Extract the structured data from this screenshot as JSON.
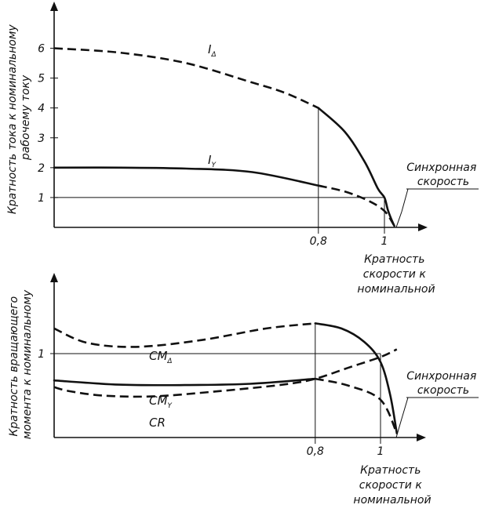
{
  "chart_data": [
    {
      "type": "line",
      "ylabel": [
        "Кратность тока к номинальному",
        "рабочему току"
      ],
      "xlabel": [
        "Кратность",
        "скорости к",
        "номинальной"
      ],
      "annotation": [
        "Синхронная",
        "скорость"
      ],
      "x_ticks": [
        {
          "value": 0.8,
          "label": "0,8"
        },
        {
          "value": 1,
          "label": "1"
        }
      ],
      "y_ticks": [
        {
          "value": 1,
          "label": "1"
        },
        {
          "value": 2,
          "label": "2"
        },
        {
          "value": 3,
          "label": "3"
        },
        {
          "value": 4,
          "label": "4"
        },
        {
          "value": 5,
          "label": "5"
        },
        {
          "value": 6,
          "label": "6"
        }
      ],
      "xlim": [
        0,
        1.06
      ],
      "ylim": [
        0,
        7.3
      ],
      "ref_lines": {
        "hline": 1,
        "vlines": [
          0.8,
          1.0
        ]
      },
      "series": [
        {
          "name": "I",
          "subscript": "Δ",
          "segments": [
            {
              "style": "dashed",
              "points": [
                [
                  0,
                  6
                ],
                [
                  0.2,
                  5.85
                ],
                [
                  0.4,
                  5.5
                ],
                [
                  0.6,
                  4.85
                ],
                [
                  0.7,
                  4.5
                ],
                [
                  0.8,
                  4.0
                ]
              ]
            },
            {
              "style": "solid",
              "points": [
                [
                  0.8,
                  4.0
                ],
                [
                  0.88,
                  3.2
                ],
                [
                  0.94,
                  2.2
                ],
                [
                  0.98,
                  1.3
                ],
                [
                  1.0,
                  1.0
                ],
                [
                  1.01,
                  0.6
                ],
                [
                  1.02,
                  0.3
                ],
                [
                  1.03,
                  0.05
                ]
              ]
            }
          ]
        },
        {
          "name": "I",
          "subscript": "Y",
          "segments": [
            {
              "style": "solid",
              "points": [
                [
                  0,
                  2.0
                ],
                [
                  0.2,
                  2.0
                ],
                [
                  0.4,
                  1.97
                ],
                [
                  0.6,
                  1.85
                ],
                [
                  0.8,
                  1.4
                ]
              ]
            },
            {
              "style": "dashed",
              "points": [
                [
                  0.8,
                  1.4
                ],
                [
                  0.88,
                  1.2
                ],
                [
                  0.95,
                  0.9
                ],
                [
                  1.0,
                  0.55
                ],
                [
                  1.03,
                  0.05
                ]
              ]
            }
          ]
        }
      ]
    },
    {
      "type": "line",
      "ylabel": [
        "Кратность вращающего",
        "момента к номинальному"
      ],
      "xlabel": [
        "Кратность",
        "скорости к",
        "номинальной"
      ],
      "annotation": [
        "Синхронная",
        "скорость"
      ],
      "x_ticks": [
        {
          "value": 0.8,
          "label": "0,8"
        },
        {
          "value": 1,
          "label": "1"
        }
      ],
      "y_ticks": [
        {
          "value": 1,
          "label": "1"
        }
      ],
      "xlim": [
        0,
        1.06
      ],
      "ylim": [
        0,
        1.85
      ],
      "ref_lines": {
        "hline": 1,
        "vlines": [
          0.8,
          1.0
        ]
      },
      "series": [
        {
          "name": "CM",
          "subscript": "Δ",
          "segments": [
            {
              "style": "dashed",
              "points": [
                [
                  0,
                  1.3
                ],
                [
                  0.1,
                  1.13
                ],
                [
                  0.25,
                  1.08
                ],
                [
                  0.45,
                  1.16
                ],
                [
                  0.65,
                  1.3
                ],
                [
                  0.8,
                  1.36
                ]
              ]
            },
            {
              "style": "solid",
              "points": [
                [
                  0.8,
                  1.36
                ],
                [
                  0.88,
                  1.3
                ],
                [
                  0.95,
                  1.14
                ],
                [
                  1.0,
                  0.9
                ],
                [
                  1.03,
                  0.5
                ],
                [
                  1.05,
                  0.05
                ]
              ]
            }
          ]
        },
        {
          "name": "CM",
          "subscript": "Y",
          "segments": [
            {
              "style": "solid",
              "points": [
                [
                  0,
                  0.68
                ],
                [
                  0.2,
                  0.63
                ],
                [
                  0.4,
                  0.625
                ],
                [
                  0.6,
                  0.64
                ],
                [
                  0.8,
                  0.7
                ]
              ]
            },
            {
              "style": "dashed",
              "points": [
                [
                  0.8,
                  0.7
                ],
                [
                  0.9,
                  0.62
                ],
                [
                  1.0,
                  0.45
                ],
                [
                  1.05,
                  0.05
                ]
              ]
            }
          ]
        },
        {
          "name": "CR",
          "subscript": "",
          "segments": [
            {
              "style": "dashed",
              "points": [
                [
                  0,
                  0.6
                ],
                [
                  0.05,
                  0.55
                ],
                [
                  0.15,
                  0.5
                ],
                [
                  0.3,
                  0.49
                ],
                [
                  0.5,
                  0.55
                ],
                [
                  0.7,
                  0.63
                ],
                [
                  0.8,
                  0.7
                ],
                [
                  0.9,
                  0.83
                ],
                [
                  1.0,
                  0.96
                ],
                [
                  1.05,
                  1.05
                ]
              ]
            }
          ]
        }
      ]
    }
  ]
}
